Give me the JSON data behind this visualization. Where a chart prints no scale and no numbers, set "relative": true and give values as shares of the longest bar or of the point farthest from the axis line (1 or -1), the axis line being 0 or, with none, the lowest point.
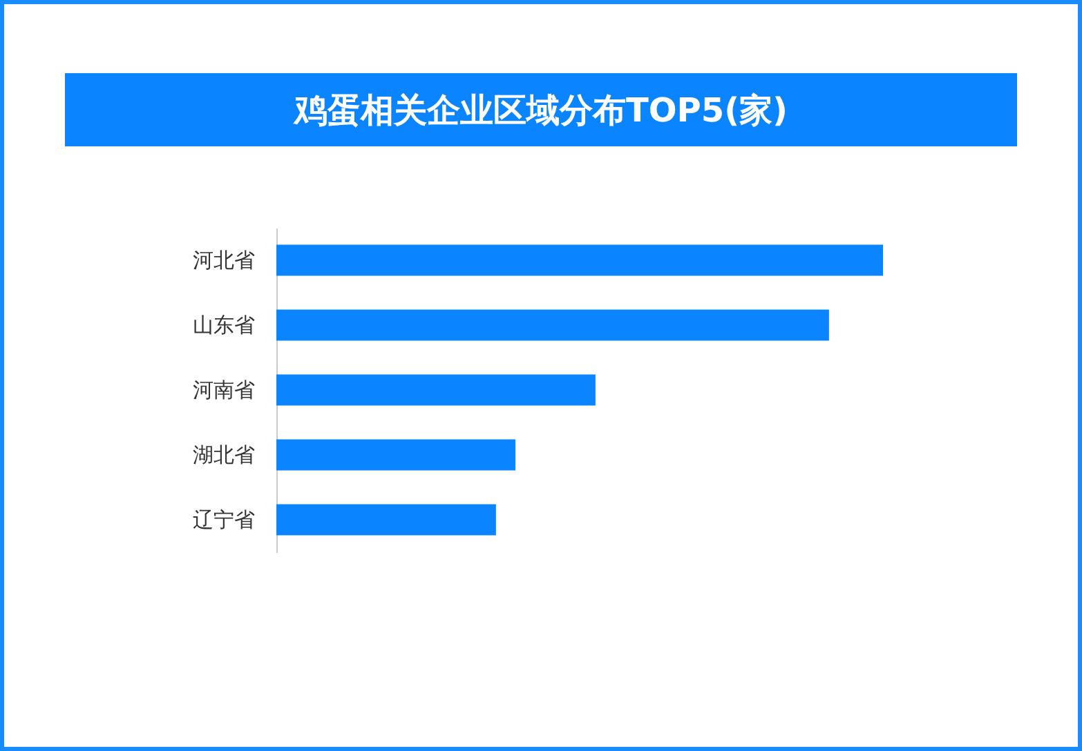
{
  "chart_data": {
    "type": "bar",
    "title": "鸡蛋相关企业区域分布TOP5(家)",
    "orientation": "horizontal",
    "relative": true,
    "categories": [
      "河北省",
      "山东省",
      "河南省",
      "湖北省",
      "辽宁省"
    ],
    "values": [
      1,
      0.911,
      0.526,
      0.394,
      0.362
    ],
    "color": "#0a84ff"
  }
}
